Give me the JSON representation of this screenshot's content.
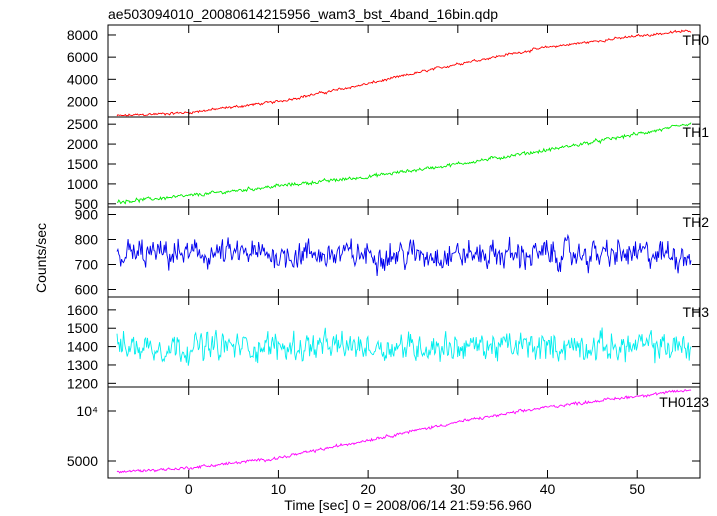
{
  "title": "ae503094010_20080614215956_wam3_bst_4band_16bin.qdp",
  "chart_data": {
    "type": "line",
    "xlabel": "Time [sec] 0 = 2008/06/14 21:59:56.960",
    "ylabel": "Counts/sec",
    "xlim": [
      -9,
      57
    ],
    "x_ticks": [
      0,
      10,
      20,
      30,
      40,
      50
    ],
    "x_tick_labels": [
      "0",
      "10",
      "20",
      "30",
      "40",
      "50"
    ],
    "x_start": -8,
    "x_end": 56,
    "panels": [
      {
        "name": "TH0",
        "color": "#ff0000",
        "ylim": [
          600,
          8900
        ],
        "y_ticks": [
          2000,
          4000,
          6000,
          8000
        ],
        "y_tick_labels": [
          "2000",
          "4000",
          "6000",
          "8000"
        ],
        "trend": [
          [
            -8,
            700
          ],
          [
            0,
            1000
          ],
          [
            10,
            2000
          ],
          [
            20,
            3600
          ],
          [
            30,
            5400
          ],
          [
            40,
            6900
          ],
          [
            50,
            7900
          ],
          [
            56,
            8400
          ]
        ],
        "noise": 120
      },
      {
        "name": "TH1",
        "color": "#00ee00",
        "ylim": [
          420,
          2680
        ],
        "y_ticks": [
          500,
          1000,
          1500,
          2000,
          2500
        ],
        "y_tick_labels": [
          "500",
          "1000",
          "1500",
          "2000",
          "2500"
        ],
        "trend": [
          [
            -8,
            550
          ],
          [
            0,
            700
          ],
          [
            10,
            950
          ],
          [
            20,
            1180
          ],
          [
            30,
            1500
          ],
          [
            40,
            1850
          ],
          [
            50,
            2250
          ],
          [
            56,
            2500
          ]
        ],
        "noise": 45
      },
      {
        "name": "TH2",
        "color": "#0000ee",
        "ylim": [
          570,
          930
        ],
        "y_ticks": [
          600,
          700,
          800,
          900
        ],
        "y_tick_labels": [
          "600",
          "700",
          "800",
          "900"
        ],
        "trend": [
          [
            -8,
            740
          ],
          [
            56,
            740
          ]
        ],
        "noise": 55
      },
      {
        "name": "TH3",
        "color": "#00eeee",
        "ylim": [
          1180,
          1670
        ],
        "y_ticks": [
          1200,
          1300,
          1400,
          1500,
          1600
        ],
        "y_tick_labels": [
          "1200",
          "1300",
          "1400",
          "1500",
          "1600"
        ],
        "trend": [
          [
            -8,
            1400
          ],
          [
            56,
            1400
          ]
        ],
        "noise": 75
      },
      {
        "name": "TH0123",
        "color": "#ff00ff",
        "ylim": [
          3300,
          12400
        ],
        "y_ticks": [
          5000,
          10000
        ],
        "y_tick_labels": [
          "5000",
          "10⁴"
        ],
        "trend": [
          [
            -8,
            3900
          ],
          [
            0,
            4300
          ],
          [
            10,
            5300
          ],
          [
            20,
            7100
          ],
          [
            30,
            8900
          ],
          [
            40,
            10400
          ],
          [
            50,
            11500
          ],
          [
            56,
            12100
          ]
        ],
        "noise": 150
      }
    ]
  }
}
